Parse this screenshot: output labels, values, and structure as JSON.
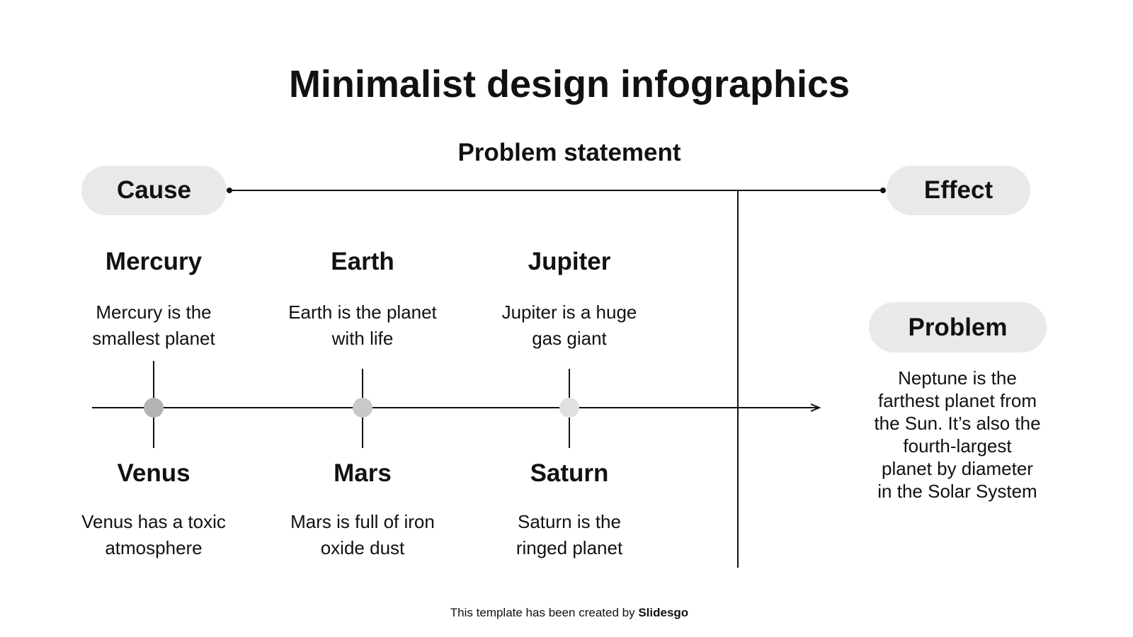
{
  "title": "Minimalist design infographics",
  "subtitle": "Problem statement",
  "cause_label": "Cause",
  "effect_label": "Effect",
  "causes": [
    {
      "name": "Mercury",
      "line1": "Mercury is the",
      "line2": "smallest planet",
      "color": "#b3b3b3"
    },
    {
      "name": "Earth",
      "line1": "Earth is the planet",
      "line2": "with life",
      "color": "#c9c9c9"
    },
    {
      "name": "Jupiter",
      "line1": "Jupiter is a huge",
      "line2": "gas giant",
      "color": "#e0e0e0"
    },
    {
      "name": "Venus",
      "line1": "Venus has a toxic",
      "line2": "atmosphere"
    },
    {
      "name": "Mars",
      "line1": "Mars is full of iron",
      "line2": "oxide dust"
    },
    {
      "name": "Saturn",
      "line1": "Saturn is the",
      "line2": "ringed planet"
    }
  ],
  "problem": {
    "label": "Problem",
    "lines": [
      "Neptune is the",
      "farthest planet from",
      "the Sun. It’s also the",
      "fourth-largest",
      "planet by diameter",
      "in the Solar System"
    ]
  },
  "footer": {
    "text": "This template has been created by ",
    "brand": "Slidesgo"
  }
}
